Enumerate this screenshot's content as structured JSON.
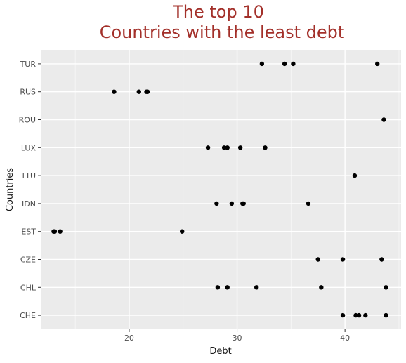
{
  "chart_data": {
    "type": "scatter",
    "title": [
      "The top 10",
      "Countries with the least debt"
    ],
    "title_color": "#a3302a",
    "xlabel": "Debt",
    "ylabel": "Countries",
    "xlim": [
      11.8,
      45.2
    ],
    "x_ticks": [
      20,
      30,
      40
    ],
    "grid": true,
    "panel_color": "#ebebeb",
    "point_color": "#000000",
    "categories": [
      "CHE",
      "CHL",
      "CZE",
      "EST",
      "IDN",
      "LTU",
      "LUX",
      "ROU",
      "RUS",
      "TUR"
    ],
    "points": [
      {
        "country": "TUR",
        "x": [
          32.3,
          34.4,
          35.2,
          43.0
        ]
      },
      {
        "country": "RUS",
        "x": [
          18.6,
          20.9,
          21.6,
          21.7
        ]
      },
      {
        "country": "ROU",
        "x": [
          43.6
        ]
      },
      {
        "country": "LUX",
        "x": [
          27.3,
          28.8,
          29.1,
          30.3,
          32.6
        ]
      },
      {
        "country": "LTU",
        "x": [
          40.9
        ]
      },
      {
        "country": "IDN",
        "x": [
          28.1,
          29.5,
          30.5,
          30.6,
          36.6
        ]
      },
      {
        "country": "EST",
        "x": [
          13.0,
          13.1,
          13.6,
          24.9
        ]
      },
      {
        "country": "CZE",
        "x": [
          37.5,
          39.8,
          43.4
        ]
      },
      {
        "country": "CHL",
        "x": [
          28.2,
          29.1,
          31.8,
          37.8,
          43.8
        ]
      },
      {
        "country": "CHE",
        "x": [
          39.8,
          41.0,
          41.3,
          41.9,
          43.8
        ]
      }
    ]
  }
}
